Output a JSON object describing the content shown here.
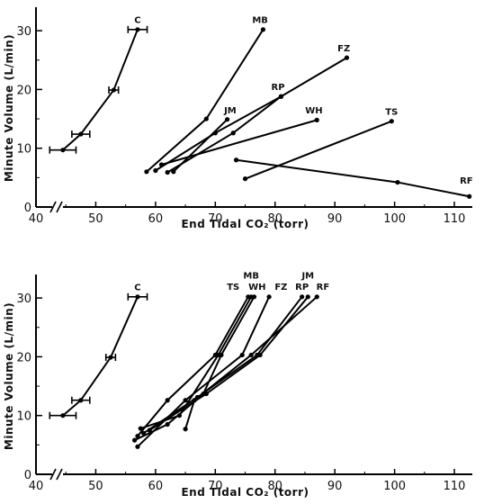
{
  "chart_data": [
    {
      "type": "line",
      "xlabel": "End Tidal CO₂ (torr)",
      "ylabel": "Minute Volume (L/min)",
      "xlim": [
        40,
        113
      ],
      "ylim": [
        0,
        34
      ],
      "xticks": [
        "40",
        "50",
        "60",
        "70",
        "80",
        "90",
        "100",
        "110"
      ],
      "yticks": [
        "0",
        "10",
        "20",
        "30"
      ],
      "series": [
        {
          "name": "C",
          "points": [
            [
              44.5,
              9.7
            ],
            [
              47.5,
              12.4
            ],
            [
              53,
              19.9
            ],
            [
              57,
              30.2
            ]
          ],
          "xerr": [
            2.2,
            1.5,
            0.8,
            1.6
          ]
        },
        {
          "name": "MB",
          "points": [
            [
              58.5,
              6.0
            ],
            [
              68.5,
              15.0
            ],
            [
              78,
              30.2
            ]
          ]
        },
        {
          "name": "FZ",
          "points": [
            [
              62,
              5.9
            ],
            [
              73,
              12.6
            ],
            [
              81,
              18.8
            ],
            [
              92,
              25.4
            ]
          ]
        },
        {
          "name": "RP",
          "points": [
            [
              60,
              6.2
            ],
            [
              70,
              12.6
            ],
            [
              81,
              18.8
            ]
          ]
        },
        {
          "name": "JM",
          "points": [
            [
              63,
              6.0
            ],
            [
              72,
              14.9
            ]
          ]
        },
        {
          "name": "WH",
          "points": [
            [
              61,
              7.2
            ],
            [
              87,
              14.8
            ]
          ]
        },
        {
          "name": "TS",
          "points": [
            [
              75,
              4.8
            ],
            [
              99.5,
              14.6
            ]
          ]
        },
        {
          "name": "RF",
          "points": [
            [
              73.5,
              8.0
            ],
            [
              100.5,
              4.2
            ],
            [
              112.5,
              1.8
            ]
          ]
        }
      ],
      "labels": [
        {
          "text": "C",
          "x": 57,
          "y": 31.3
        },
        {
          "text": "MB",
          "x": 77.5,
          "y": 31.3
        },
        {
          "text": "FZ",
          "x": 91.5,
          "y": 26.5
        },
        {
          "text": "RP",
          "x": 80.5,
          "y": 19.9
        },
        {
          "text": "JM",
          "x": 72.5,
          "y": 15.9
        },
        {
          "text": "WH",
          "x": 86.5,
          "y": 15.9
        },
        {
          "text": "TS",
          "x": 99.5,
          "y": 15.7
        },
        {
          "text": "RF",
          "x": 112,
          "y": 4.0
        }
      ]
    },
    {
      "type": "line",
      "xlabel": "End Tidal CO₂ (torr)",
      "ylabel": "Minute Volume (L/min)",
      "xlim": [
        40,
        113
      ],
      "ylim": [
        0,
        34
      ],
      "xticks": [
        "40",
        "50",
        "60",
        "70",
        "80",
        "90",
        "100",
        "110"
      ],
      "yticks": [
        "0",
        "10",
        "20",
        "30"
      ],
      "series": [
        {
          "name": "C",
          "points": [
            [
              44.5,
              10.0
            ],
            [
              47.5,
              12.6
            ],
            [
              52.5,
              19.9
            ],
            [
              57,
              30.2
            ]
          ],
          "xerr": [
            2.2,
            1.5,
            0.8,
            1.6
          ]
        },
        {
          "name": "MB",
          "points": [
            [
              56.5,
              5.8
            ],
            [
              62,
              8.5
            ],
            [
              68,
              13.7
            ],
            [
              71,
              20.3
            ],
            [
              76.5,
              30.2
            ]
          ]
        },
        {
          "name": "TS",
          "points": [
            [
              57,
              6.5
            ],
            [
              62,
              12.6
            ],
            [
              70,
              20.3
            ],
            [
              75.5,
              30.2
            ]
          ]
        },
        {
          "name": "WH",
          "points": [
            [
              57.5,
              7.8
            ],
            [
              64,
              10.0
            ],
            [
              70.5,
              20.3
            ],
            [
              76,
              30.2
            ]
          ]
        },
        {
          "name": "FZ",
          "points": [
            [
              57,
              4.7
            ],
            [
              65,
              12.6
            ],
            [
              74.5,
              20.3
            ],
            [
              79,
              30.2
            ]
          ]
        },
        {
          "name": "RP",
          "points": [
            [
              58,
              7.0
            ],
            [
              67,
              13.1
            ],
            [
              77,
              20.3
            ],
            [
              84.5,
              30.2
            ]
          ]
        },
        {
          "name": "JM",
          "points": [
            [
              59,
              7.5
            ],
            [
              68.5,
              13.7
            ],
            [
              77.5,
              20.3
            ],
            [
              85.5,
              30.2
            ]
          ]
        },
        {
          "name": "RF",
          "points": [
            [
              65,
              7.7
            ],
            [
              66.5,
              12.6
            ],
            [
              76,
              20.3
            ],
            [
              87,
              30.2
            ]
          ]
        }
      ],
      "labels": [
        {
          "text": "C",
          "x": 57,
          "y": 31.3
        },
        {
          "text": "MB",
          "x": 76,
          "y": 33.3
        },
        {
          "text": "TS",
          "x": 73,
          "y": 31.4
        },
        {
          "text": "WH",
          "x": 77,
          "y": 31.4
        },
        {
          "text": "FZ",
          "x": 81,
          "y": 31.4
        },
        {
          "text": "RP",
          "x": 84.5,
          "y": 31.4
        },
        {
          "text": "JM",
          "x": 85.5,
          "y": 33.3
        },
        {
          "text": "RF",
          "x": 88,
          "y": 31.4
        }
      ]
    }
  ]
}
